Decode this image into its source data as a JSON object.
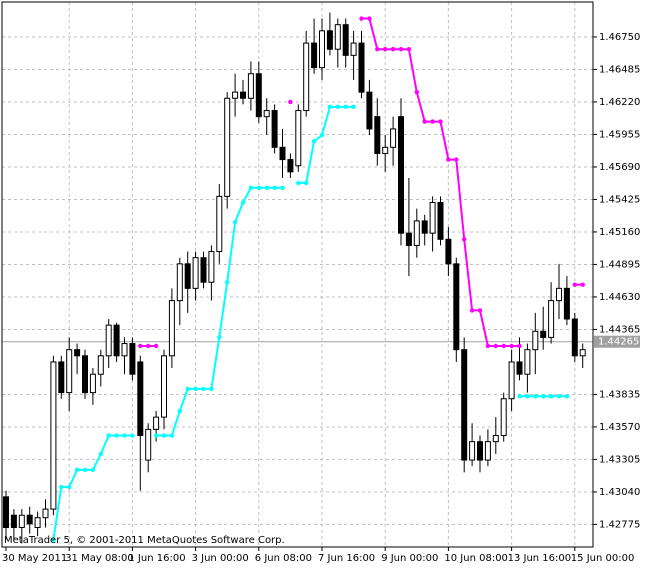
{
  "chart_data": {
    "type": "candlestick",
    "footer": "MetaTrader 5, © 2001-2011 MetaQuotes Software Corp.",
    "categories": [
      "30 May 2011",
      null,
      null,
      null,
      null,
      null,
      null,
      null,
      "31 May 08:00",
      null,
      null,
      null,
      null,
      null,
      null,
      null,
      "1 Jun 16:00",
      null,
      null,
      null,
      null,
      null,
      null,
      null,
      "3 Jun 00:00",
      null,
      null,
      null,
      null,
      null,
      null,
      null,
      "6 Jun 08:00",
      null,
      null,
      null,
      null,
      null,
      null,
      null,
      "7 Jun 16:00",
      null,
      null,
      null,
      null,
      null,
      null,
      null,
      "9 Jun 00:00",
      null,
      null,
      null,
      null,
      null,
      null,
      null,
      "10 Jun 08:00",
      null,
      null,
      null,
      null,
      null,
      null,
      null,
      "13 Jun 16:00",
      null,
      null,
      null,
      null,
      null,
      null,
      null,
      "15 Jun 00:00",
      null
    ],
    "open": [
      1.43,
      1.4285,
      1.4275,
      1.4285,
      1.4275,
      1.4283,
      1.429,
      1.441,
      1.4385,
      1.442,
      1.4415,
      1.4385,
      1.44,
      1.4415,
      1.444,
      1.4415,
      1.4425,
      1.441,
      1.433,
      1.4355,
      1.4365,
      1.4415,
      1.446,
      1.449,
      1.447,
      1.4495,
      1.4475,
      1.45,
      1.4545,
      1.4625,
      1.463,
      1.4625,
      1.4645,
      1.461,
      1.4615,
      1.4585,
      1.4575,
      1.457,
      1.4615,
      1.467,
      1.465,
      1.468,
      1.4665,
      1.4685,
      1.466,
      1.467,
      1.463,
      1.461,
      1.458,
      1.4585,
      1.461,
      1.4515,
      1.4505,
      1.4525,
      1.4515,
      1.454,
      1.451,
      1.449,
      1.442,
      1.433,
      1.4345,
      1.433,
      1.4345,
      1.435,
      1.438,
      1.441,
      1.44,
      1.442,
      1.4435,
      1.443,
      1.446,
      1.447,
      1.4445,
      1.4415
    ],
    "high": [
      1.4305,
      1.429,
      1.429,
      1.4292,
      1.4288,
      1.4298,
      1.4415,
      1.4415,
      1.443,
      1.4425,
      1.442,
      1.4405,
      1.442,
      1.4445,
      1.4442,
      1.443,
      1.443,
      1.4415,
      1.436,
      1.437,
      1.442,
      1.447,
      1.4495,
      1.45,
      1.45,
      1.45,
      1.4505,
      1.4555,
      1.463,
      1.4645,
      1.464,
      1.4655,
      1.4655,
      1.4625,
      1.462,
      1.46,
      1.458,
      1.462,
      1.468,
      1.469,
      1.469,
      1.4695,
      1.469,
      1.469,
      1.468,
      1.468,
      1.464,
      1.4625,
      1.4595,
      1.461,
      1.4625,
      1.456,
      1.4535,
      1.453,
      1.4545,
      1.4545,
      1.452,
      1.4495,
      1.443,
      1.436,
      1.435,
      1.4355,
      1.4365,
      1.4385,
      1.442,
      1.443,
      1.4425,
      1.445,
      1.4455,
      1.4475,
      1.449,
      1.448,
      1.445,
      1.4425
    ],
    "low": [
      1.4265,
      1.4265,
      1.4262,
      1.427,
      1.4268,
      1.4275,
      1.4285,
      1.438,
      1.437,
      1.44,
      1.438,
      1.4375,
      1.439,
      1.4405,
      1.441,
      1.44,
      1.4395,
      1.4305,
      1.432,
      1.4345,
      1.4355,
      1.4405,
      1.444,
      1.445,
      1.446,
      1.447,
      1.446,
      1.449,
      1.4535,
      1.461,
      1.462,
      1.4615,
      1.4605,
      1.4595,
      1.458,
      1.456,
      1.456,
      1.4565,
      1.461,
      1.4645,
      1.464,
      1.466,
      1.465,
      1.465,
      1.464,
      1.4625,
      1.4595,
      1.457,
      1.4565,
      1.457,
      1.4505,
      1.448,
      1.4495,
      1.4505,
      1.45,
      1.4505,
      1.448,
      1.441,
      1.432,
      1.4325,
      1.432,
      1.4325,
      1.4335,
      1.4345,
      1.437,
      1.4395,
      1.4385,
      1.44,
      1.442,
      1.4425,
      1.4445,
      1.444,
      1.441,
      1.4405
    ],
    "close": [
      1.4275,
      1.4275,
      1.4285,
      1.4278,
      1.4283,
      1.429,
      1.441,
      1.4385,
      1.442,
      1.4415,
      1.4385,
      1.44,
      1.4415,
      1.444,
      1.4415,
      1.4425,
      1.44,
      1.435,
      1.4355,
      1.4365,
      1.4415,
      1.446,
      1.449,
      1.447,
      1.4495,
      1.4475,
      1.45,
      1.4545,
      1.4625,
      1.463,
      1.4625,
      1.4645,
      1.461,
      1.4615,
      1.4585,
      1.4575,
      1.4565,
      1.4615,
      1.467,
      1.465,
      1.468,
      1.4665,
      1.4685,
      1.466,
      1.467,
      1.463,
      1.46,
      1.458,
      1.4585,
      1.46,
      1.4515,
      1.4505,
      1.4525,
      1.4515,
      1.454,
      1.451,
      1.449,
      1.442,
      1.433,
      1.4345,
      1.433,
      1.4345,
      1.435,
      1.438,
      1.441,
      1.44,
      1.442,
      1.4435,
      1.443,
      1.446,
      1.447,
      1.4445,
      1.4415,
      1.442
    ],
    "series": [
      {
        "color": "#00ffff",
        "values": [
          null,
          null,
          null,
          null,
          null,
          null,
          1.4265,
          1.4308,
          1.4308,
          1.4322,
          1.4322,
          1.4322,
          1.4335,
          1.435,
          1.435,
          1.435,
          1.435,
          null,
          null,
          1.435,
          1.435,
          1.435,
          1.437,
          1.4388,
          1.4388,
          1.4388,
          1.4388,
          1.443,
          1.4475,
          1.4524,
          1.454,
          1.4552,
          1.4552,
          1.4552,
          1.4552,
          1.4552,
          null,
          1.4556,
          1.4556,
          1.459,
          1.4595,
          1.4618,
          1.4618,
          1.4618,
          1.4618,
          null,
          null,
          null,
          null,
          null,
          null,
          null,
          null,
          null,
          null,
          null,
          null,
          null,
          null,
          null,
          null,
          null,
          null,
          null,
          null,
          1.4382,
          1.4382,
          1.4382,
          1.4382,
          1.4382,
          1.4382,
          1.4382,
          null,
          null
        ]
      },
      {
        "color": "#ff00ff",
        "values": [
          null,
          null,
          null,
          null,
          null,
          null,
          null,
          null,
          null,
          null,
          null,
          null,
          null,
          null,
          null,
          null,
          null,
          1.4423,
          1.4423,
          1.4423,
          null,
          null,
          null,
          null,
          null,
          null,
          null,
          null,
          null,
          null,
          null,
          null,
          null,
          null,
          null,
          null,
          1.4622,
          null,
          null,
          null,
          null,
          null,
          null,
          null,
          null,
          1.469,
          1.469,
          1.4665,
          1.4665,
          1.4665,
          1.4665,
          1.4665,
          1.463,
          1.4606,
          1.4606,
          1.4606,
          1.4575,
          1.4575,
          1.451,
          1.4452,
          1.4452,
          1.4423,
          1.4423,
          1.4423,
          1.4423,
          1.4423,
          null,
          null,
          null,
          null,
          null,
          null,
          1.4473,
          1.4473
        ]
      }
    ],
    "ylim": [
      1.42591,
      1.47035
    ],
    "yticks": [
      {
        "value": 1.42775,
        "label": "1.42775"
      },
      {
        "value": 1.4304,
        "label": "1.43040"
      },
      {
        "value": 1.43305,
        "label": "1.43305"
      },
      {
        "value": 1.4357,
        "label": "1.43570"
      },
      {
        "value": 1.43835,
        "label": "1.43835"
      },
      {
        "value": 1.44365,
        "label": "1.44365"
      },
      {
        "value": 1.4463,
        "label": "1.44630"
      },
      {
        "value": 1.44895,
        "label": "1.44895"
      },
      {
        "value": 1.4516,
        "label": "1.45160"
      },
      {
        "value": 1.45425,
        "label": "1.45425"
      },
      {
        "value": 1.4569,
        "label": "1.45690"
      },
      {
        "value": 1.45955,
        "label": "1.45955"
      },
      {
        "value": 1.4622,
        "label": "1.46220"
      },
      {
        "value": 1.46485,
        "label": "1.46485"
      },
      {
        "value": 1.4675,
        "label": "1.46750"
      }
    ],
    "current_price": 1.44265,
    "grid": true
  }
}
